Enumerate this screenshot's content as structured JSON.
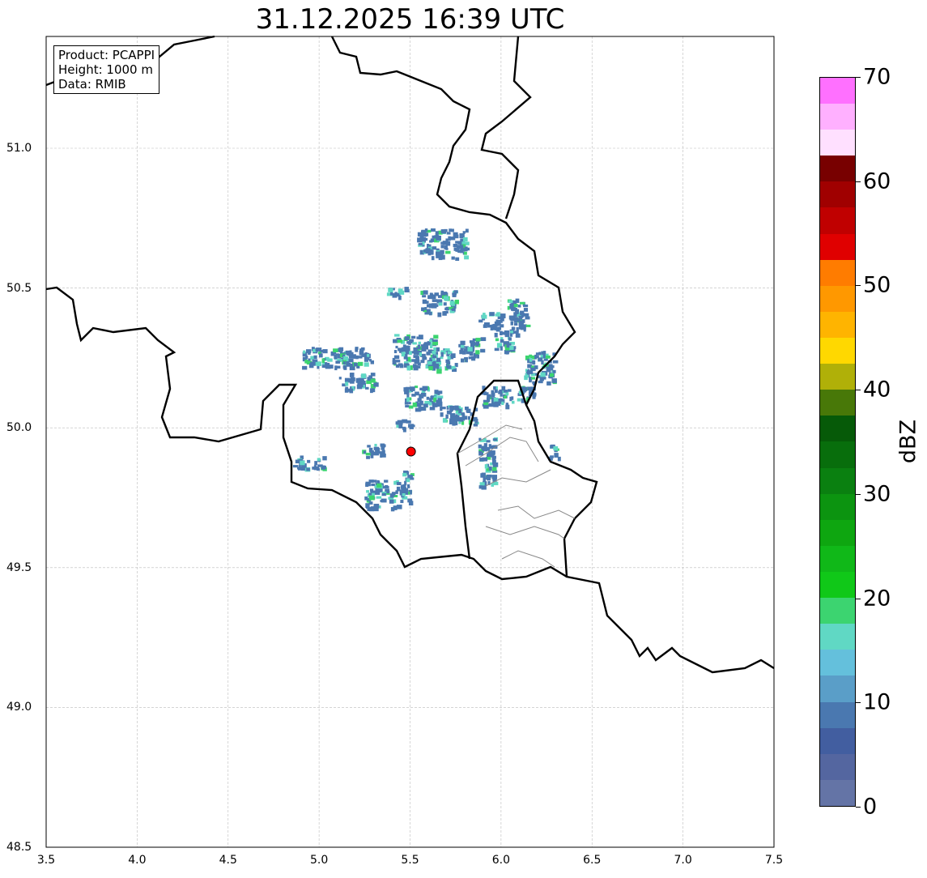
{
  "title": "31.12.2025 16:39 UTC",
  "info_box": {
    "lines": [
      "Product: PCAPPI",
      "Height: 1000 m",
      "Data: RMIB"
    ]
  },
  "x_axis": {
    "ticks": [
      "3.5",
      "4.0",
      "4.5",
      "5.0",
      "5.5",
      "6.0",
      "6.5",
      "7.0",
      "7.5"
    ],
    "range": [
      3.5,
      7.5
    ]
  },
  "y_axis": {
    "ticks": [
      "48.5",
      "49.0",
      "49.5",
      "50.0",
      "50.5",
      "51.0"
    ],
    "range": [
      48.5,
      51.4
    ]
  },
  "radar_site": {
    "lon": 5.505,
    "lat": 49.915,
    "color": "#ff0000"
  },
  "colorbar": {
    "label": "dBZ",
    "ticks": [
      "0",
      "10",
      "20",
      "30",
      "40",
      "50",
      "60",
      "70"
    ],
    "range": [
      0,
      70
    ],
    "step": 2.5,
    "colors": [
      "#6474a6",
      "#5466a0",
      "#425ea0",
      "#4a78b0",
      "#5a9ec8",
      "#64c0dc",
      "#60d8c4",
      "#3cd470",
      "#10c818",
      "#10b818",
      "#0ea610",
      "#0c9410",
      "#0a8010",
      "#086e0c",
      "#065a08",
      "#487808",
      "#b0b008",
      "#ffd800",
      "#ffb400",
      "#ff9800",
      "#ff7c00",
      "#e00000",
      "#c00000",
      "#a00000",
      "#780000",
      "#ffe0ff",
      "#ffb0ff",
      "#ff70ff",
      "#e838f0"
    ]
  }
}
